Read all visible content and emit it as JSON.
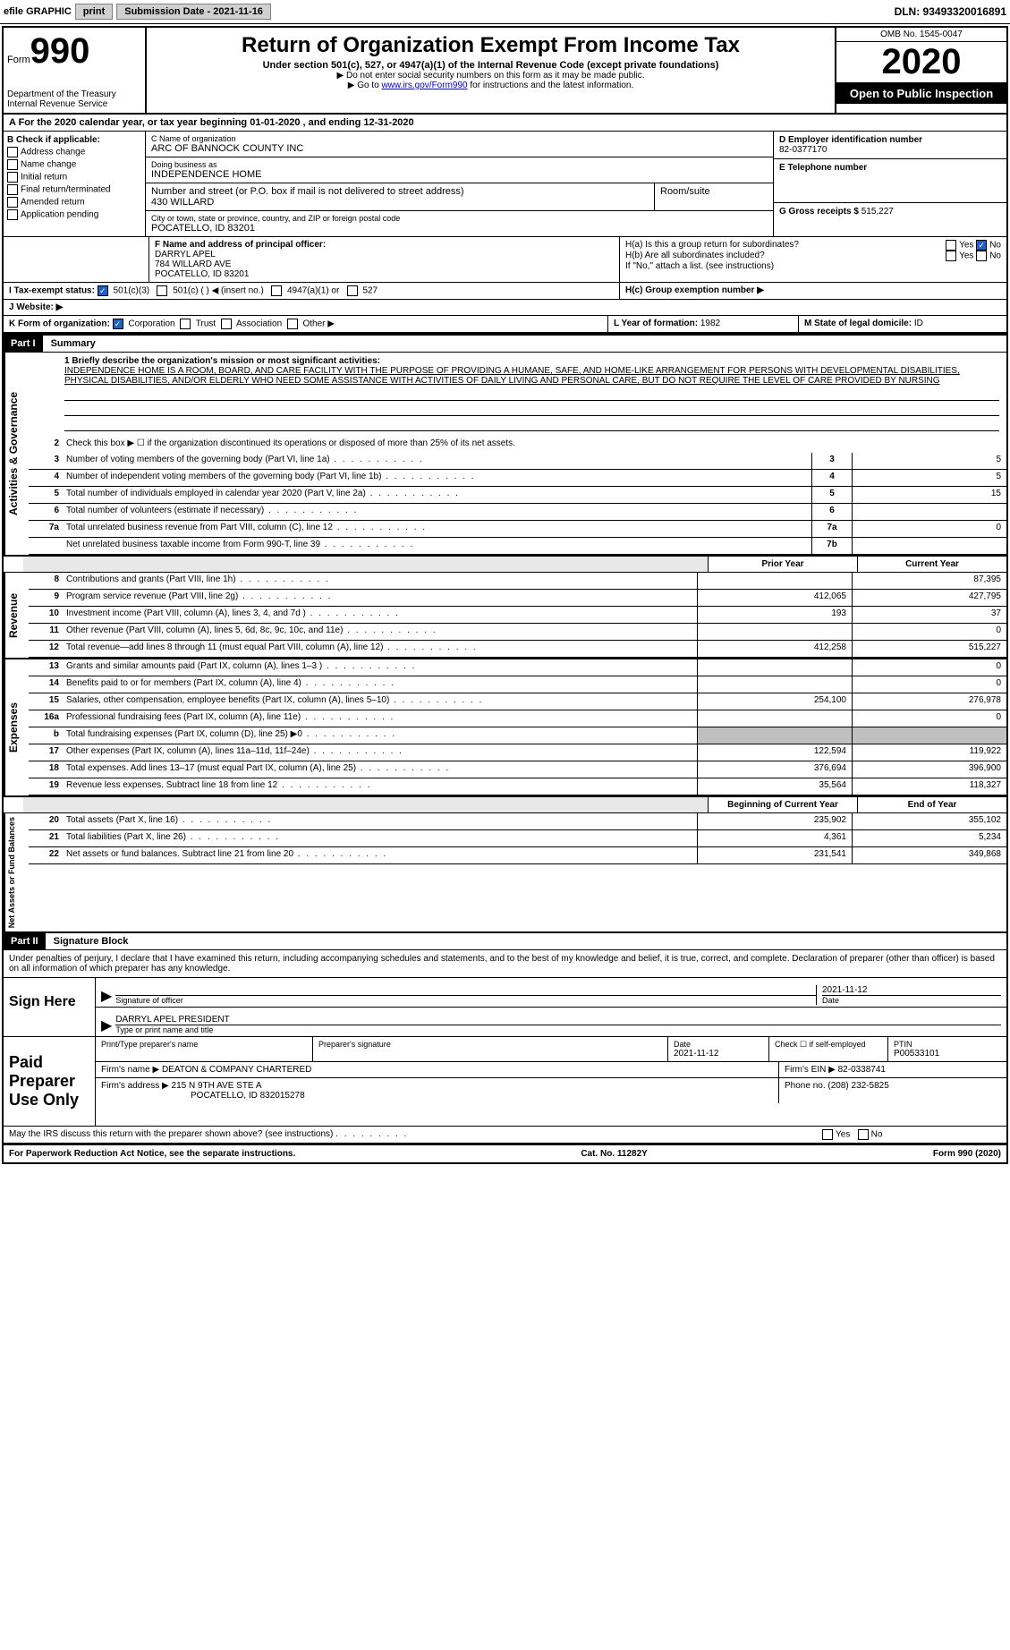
{
  "topbar": {
    "efile_label": "efile GRAPHIC",
    "print_btn": "print",
    "sub_date_label": "Submission Date - 2021-11-16",
    "dln": "DLN: 93493320016891"
  },
  "header": {
    "form_word": "Form",
    "form_num": "990",
    "dept": "Department of the Treasury",
    "irs": "Internal Revenue Service",
    "title": "Return of Organization Exempt From Income Tax",
    "subtitle": "Under section 501(c), 527, or 4947(a)(1) of the Internal Revenue Code (except private foundations)",
    "note1": "▶ Do not enter social security numbers on this form as it may be made public.",
    "note2_pre": "▶ Go to ",
    "note2_link": "www.irs.gov/Form990",
    "note2_post": " for instructions and the latest information.",
    "omb": "OMB No. 1545-0047",
    "year": "2020",
    "inspection": "Open to Public Inspection"
  },
  "period": {
    "label_a": "A For the 2020 calendar year, or tax year beginning ",
    "begin": "01-01-2020",
    "mid": " , and ending ",
    "end": "12-31-2020"
  },
  "box_b": {
    "header": "B Check if applicable:",
    "items": [
      "Address change",
      "Name change",
      "Initial return",
      "Final return/terminated",
      "Amended return",
      "Application pending"
    ]
  },
  "box_c": {
    "name_label": "C Name of organization",
    "name": "ARC OF BANNOCK COUNTY INC",
    "dba_label": "Doing business as",
    "dba": "INDEPENDENCE HOME",
    "street_label": "Number and street (or P.O. box if mail is not delivered to street address)",
    "street": "430 WILLARD",
    "room_label": "Room/suite",
    "city_label": "City or town, state or province, country, and ZIP or foreign postal code",
    "city": "POCATELLO, ID  83201"
  },
  "box_d": {
    "ein_label": "D Employer identification number",
    "ein": "82-0377170",
    "phone_label": "E Telephone number",
    "gross_label": "G Gross receipts $",
    "gross": "515,227"
  },
  "box_f": {
    "label": "F Name and address of principal officer:",
    "name": "DARRYL APEL",
    "street": "784 WILLARD AVE",
    "city": "POCATELLO, ID  83201"
  },
  "box_h": {
    "ha_label": "H(a) Is this a group return for subordinates?",
    "hb_label": "H(b) Are all subordinates included?",
    "hb_note": "If \"No,\" attach a list. (see instructions)",
    "hc_label": "H(c) Group exemption number ▶",
    "yes": "Yes",
    "no": "No"
  },
  "box_i": {
    "label": "I   Tax-exempt status:",
    "opt1": "501(c)(3)",
    "opt2": "501(c) (   )",
    "opt2_note": "◀ (insert no.)",
    "opt3": "4947(a)(1) or",
    "opt4": "527"
  },
  "box_j": {
    "label": "J   Website: ▶"
  },
  "box_k": {
    "label": "K Form of organization:",
    "opts": [
      "Corporation",
      "Trust",
      "Association",
      "Other ▶"
    ]
  },
  "box_l": {
    "label": "L Year of formation:",
    "val": "1982"
  },
  "box_m": {
    "label": "M State of legal domicile:",
    "val": "ID"
  },
  "part1": {
    "header": "Part I",
    "title": "Summary"
  },
  "mission": {
    "label": "1  Briefly describe the organization's mission or most significant activities:",
    "text": "INDEPENDENCE HOME IS A ROOM, BOARD, AND CARE FACILITY WITH THE PURPOSE OF PROVIDING A HUMANE, SAFE, AND HOME-LIKE ARRANGEMENT FOR PERSONS WITH DEVELOPMENTAL DISABILITIES, PHYSICAL DISABILITIES, AND/OR ELDERLY WHO NEED SOME ASSISTANCE WITH ACTIVITIES OF DAILY LIVING AND PERSONAL CARE, BUT DO NOT REQUIRE THE LEVEL OF CARE PROVIDED BY NURSING"
  },
  "section_ag": {
    "label": "Activities & Governance",
    "line2": "Check this box ▶ ☐ if the organization discontinued its operations or disposed of more than 25% of its net assets.",
    "lines": [
      {
        "num": "3",
        "desc": "Number of voting members of the governing body (Part VI, line 1a)",
        "box": "3",
        "val": "5"
      },
      {
        "num": "4",
        "desc": "Number of independent voting members of the governing body (Part VI, line 1b)",
        "box": "4",
        "val": "5"
      },
      {
        "num": "5",
        "desc": "Total number of individuals employed in calendar year 2020 (Part V, line 2a)",
        "box": "5",
        "val": "15"
      },
      {
        "num": "6",
        "desc": "Total number of volunteers (estimate if necessary)",
        "box": "6",
        "val": ""
      },
      {
        "num": "7a",
        "desc": "Total unrelated business revenue from Part VIII, column (C), line 12",
        "box": "7a",
        "val": "0"
      },
      {
        "num": "",
        "desc": "Net unrelated business taxable income from Form 990-T, line 39",
        "box": "7b",
        "val": ""
      }
    ]
  },
  "col_headers": {
    "prior": "Prior Year",
    "current": "Current Year",
    "begin": "Beginning of Current Year",
    "end": "End of Year"
  },
  "section_rev": {
    "label": "Revenue",
    "lines": [
      {
        "num": "8",
        "desc": "Contributions and grants (Part VIII, line 1h)",
        "prior": "",
        "current": "87,395"
      },
      {
        "num": "9",
        "desc": "Program service revenue (Part VIII, line 2g)",
        "prior": "412,065",
        "current": "427,795"
      },
      {
        "num": "10",
        "desc": "Investment income (Part VIII, column (A), lines 3, 4, and 7d )",
        "prior": "193",
        "current": "37"
      },
      {
        "num": "11",
        "desc": "Other revenue (Part VIII, column (A), lines 5, 6d, 8c, 9c, 10c, and 11e)",
        "prior": "",
        "current": "0"
      },
      {
        "num": "12",
        "desc": "Total revenue—add lines 8 through 11 (must equal Part VIII, column (A), line 12)",
        "prior": "412,258",
        "current": "515,227"
      }
    ]
  },
  "section_exp": {
    "label": "Expenses",
    "lines": [
      {
        "num": "13",
        "desc": "Grants and similar amounts paid (Part IX, column (A), lines 1–3 )",
        "prior": "",
        "current": "0"
      },
      {
        "num": "14",
        "desc": "Benefits paid to or for members (Part IX, column (A), line 4)",
        "prior": "",
        "current": "0"
      },
      {
        "num": "15",
        "desc": "Salaries, other compensation, employee benefits (Part IX, column (A), lines 5–10)",
        "prior": "254,100",
        "current": "276,978"
      },
      {
        "num": "16a",
        "desc": "Professional fundraising fees (Part IX, column (A), line 11e)",
        "prior": "",
        "current": "0"
      },
      {
        "num": "b",
        "desc": "Total fundraising expenses (Part IX, column (D), line 25) ▶0",
        "prior": "grey",
        "current": "grey"
      },
      {
        "num": "17",
        "desc": "Other expenses (Part IX, column (A), lines 11a–11d, 11f–24e)",
        "prior": "122,594",
        "current": "119,922"
      },
      {
        "num": "18",
        "desc": "Total expenses. Add lines 13–17 (must equal Part IX, column (A), line 25)",
        "prior": "376,694",
        "current": "396,900"
      },
      {
        "num": "19",
        "desc": "Revenue less expenses. Subtract line 18 from line 12",
        "prior": "35,564",
        "current": "118,327"
      }
    ]
  },
  "section_net": {
    "label": "Net Assets or Fund Balances",
    "lines": [
      {
        "num": "20",
        "desc": "Total assets (Part X, line 16)",
        "prior": "235,902",
        "current": "355,102"
      },
      {
        "num": "21",
        "desc": "Total liabilities (Part X, line 26)",
        "prior": "4,361",
        "current": "5,234"
      },
      {
        "num": "22",
        "desc": "Net assets or fund balances. Subtract line 21 from line 20",
        "prior": "231,541",
        "current": "349,868"
      }
    ]
  },
  "part2": {
    "header": "Part II",
    "title": "Signature Block",
    "penalty": "Under penalties of perjury, I declare that I have examined this return, including accompanying schedules and statements, and to the best of my knowledge and belief, it is true, correct, and complete. Declaration of preparer (other than officer) is based on all information of which preparer has any knowledge."
  },
  "sign": {
    "label": "Sign Here",
    "sig_officer": "Signature of officer",
    "date": "2021-11-12",
    "date_label": "Date",
    "name": "DARRYL APEL PRESIDENT",
    "name_label": "Type or print name and title"
  },
  "prep": {
    "label": "Paid Preparer Use Only",
    "print_label": "Print/Type preparer's name",
    "sig_label": "Preparer's signature",
    "date_label": "Date",
    "date": "2021-11-12",
    "check_label": "Check ☐ if self-employed",
    "ptin_label": "PTIN",
    "ptin": "P00533101",
    "firm_name_label": "Firm's name    ▶",
    "firm_name": "DEATON & COMPANY CHARTERED",
    "firm_ein_label": "Firm's EIN ▶",
    "firm_ein": "82-0338741",
    "firm_addr_label": "Firm's address ▶",
    "firm_addr1": "215 N 9TH AVE STE A",
    "firm_addr2": "POCATELLO, ID  832015278",
    "phone_label": "Phone no.",
    "phone": "(208) 232-5825"
  },
  "discuss": {
    "text": "May the IRS discuss this return with the preparer shown above? (see instructions)",
    "yes": "Yes",
    "no": "No"
  },
  "footer": {
    "left": "For Paperwork Reduction Act Notice, see the separate instructions.",
    "mid": "Cat. No. 11282Y",
    "right": "Form 990 (2020)"
  }
}
